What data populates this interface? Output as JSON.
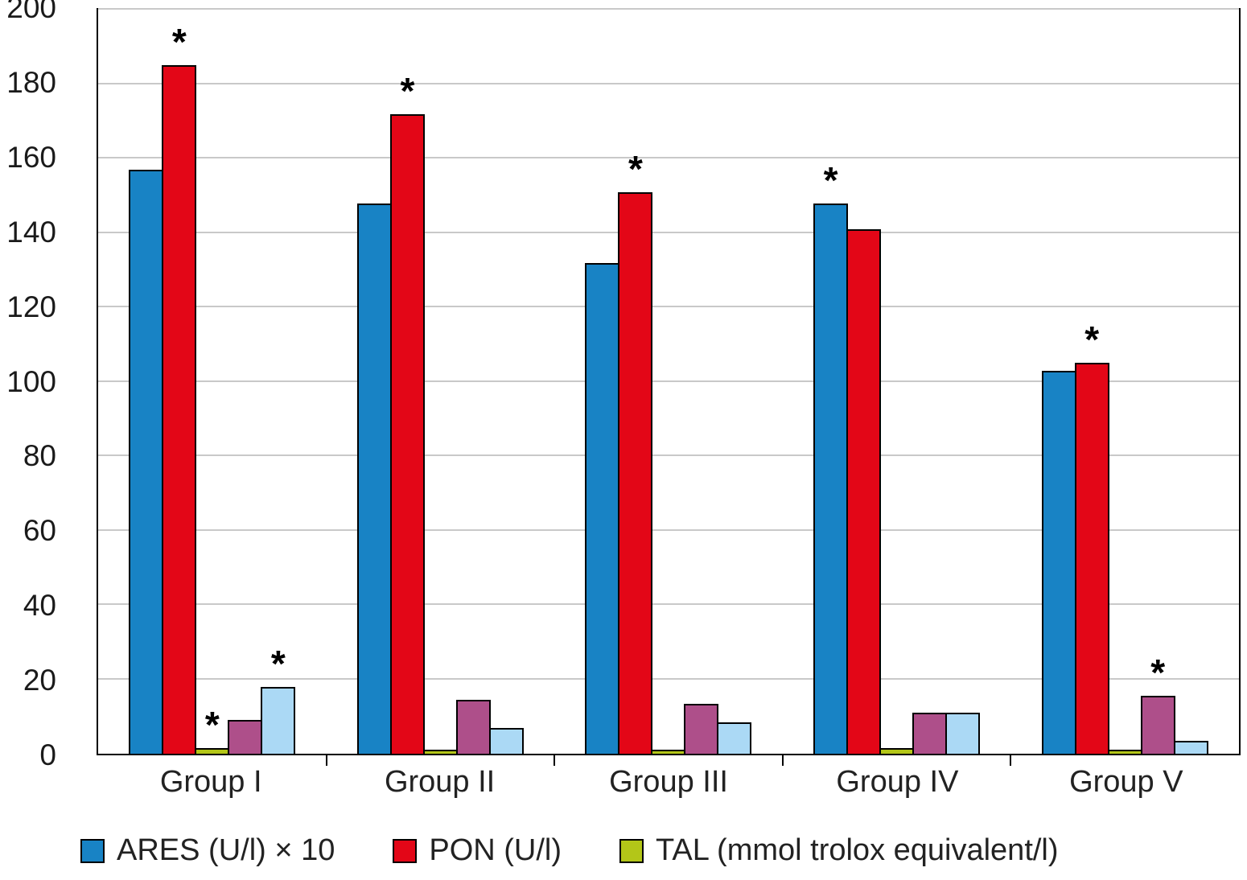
{
  "chart_data": {
    "type": "bar",
    "title": "",
    "xlabel": "",
    "ylabel": "",
    "categories": [
      "Group I",
      "Group II",
      "Group III",
      "Group IV",
      "Group V"
    ],
    "series": [
      {
        "name": "ARES (U/l) × 10",
        "color": "#1883c5",
        "values": [
          157,
          148,
          132,
          148,
          103
        ]
      },
      {
        "name": "PON (U/l)",
        "color": "#e30617",
        "values": [
          185,
          172,
          151,
          141,
          105
        ]
      },
      {
        "name": "TAL (mmol trolox equivalent/l)",
        "color": "#b3c618",
        "values": [
          1.5,
          1,
          1,
          1.5,
          1
        ]
      },
      {
        "name": "",
        "color": "#ae4f8a",
        "values": [
          9,
          14.5,
          13.5,
          11,
          15.5
        ]
      },
      {
        "name": "",
        "color": "#abd9f5",
        "values": [
          18,
          7,
          8.5,
          11,
          3.5
        ]
      }
    ],
    "legend": [
      {
        "label": "ARES (U/l) × 10",
        "series": 0
      },
      {
        "label": "PON (U/l)",
        "series": 1
      },
      {
        "label": "TAL (mmol trolox equivalent/l)",
        "series": 2
      }
    ],
    "ylim": [
      0,
      200
    ],
    "yticks": [
      0,
      20,
      40,
      60,
      80,
      100,
      120,
      140,
      160,
      180,
      200
    ],
    "grid": true,
    "legend_position": "bottom",
    "annotations": {
      "symbol": "*",
      "marks": [
        {
          "category": 0,
          "series": 1
        },
        {
          "category": 0,
          "series": 2
        },
        {
          "category": 0,
          "series": 4
        },
        {
          "category": 1,
          "series": 1
        },
        {
          "category": 2,
          "series": 1
        },
        {
          "category": 3,
          "series": 0
        },
        {
          "category": 4,
          "series": 1
        },
        {
          "category": 4,
          "series": 3
        }
      ]
    }
  }
}
